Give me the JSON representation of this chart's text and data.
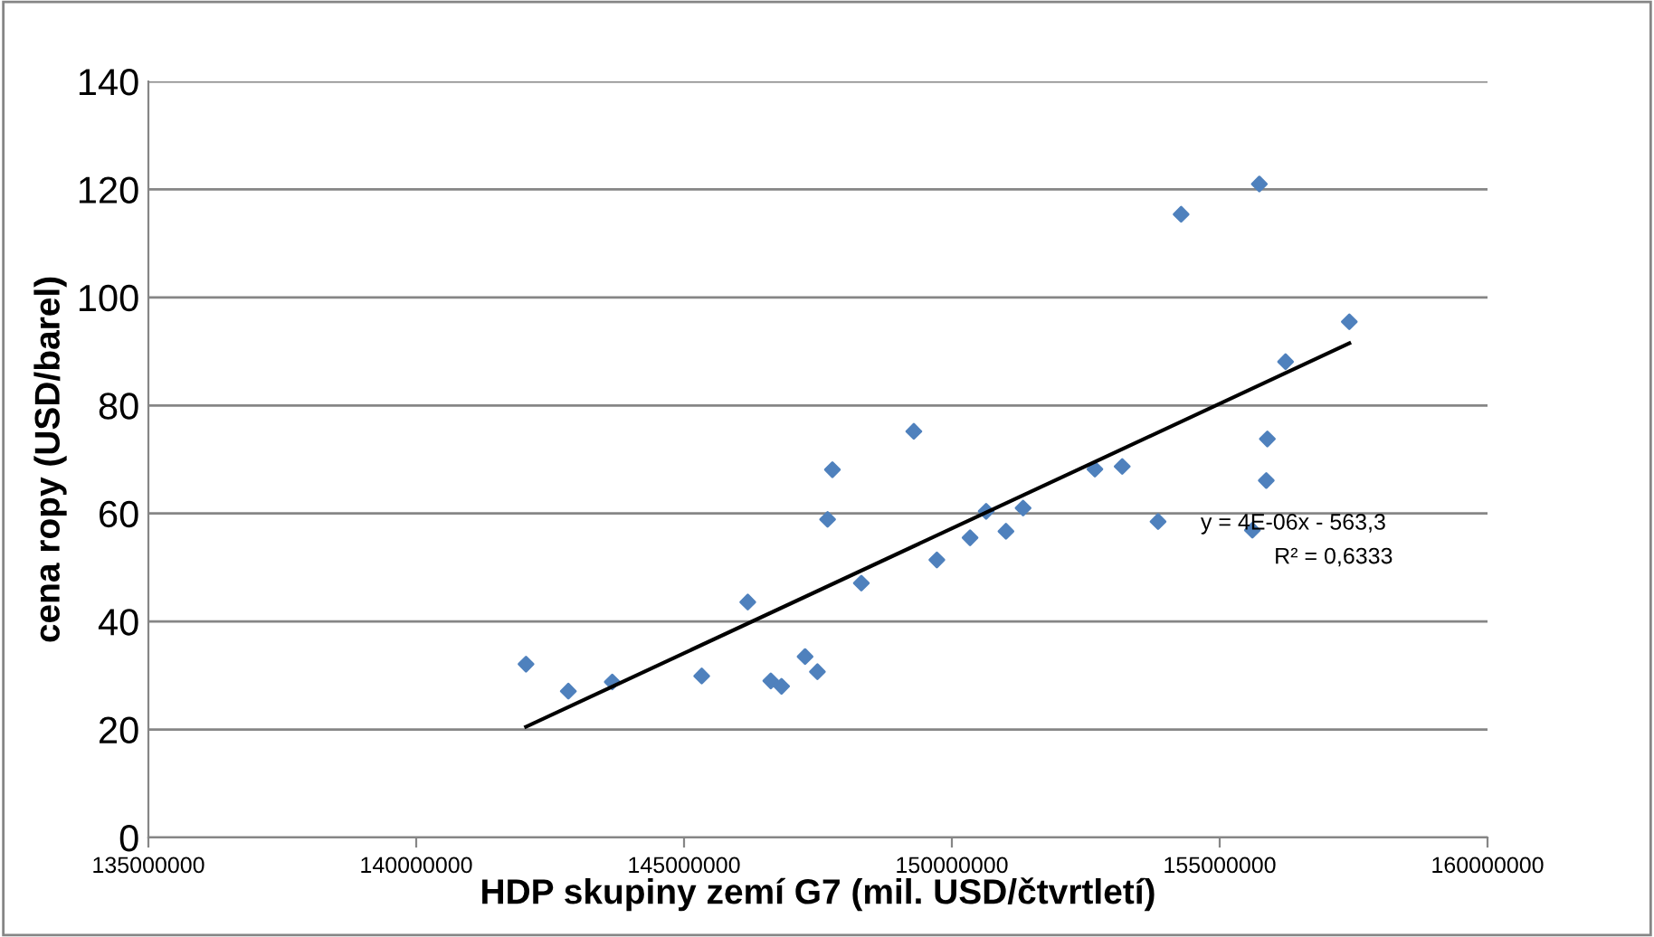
{
  "chart_data": {
    "type": "scatter",
    "xlabel": "HDP skupiny zemí G7 (mil. USD/čtvrtletí)",
    "ylabel": "cena ropy (USD/barel)",
    "series": [
      {
        "color": "#4f81bd",
        "marker": "diamond",
        "x": [
          142050000,
          142840000,
          143660000,
          145330000,
          146190000,
          146620000,
          146820000,
          147260000,
          147490000,
          147680000,
          147770000,
          148310000,
          149290000,
          149720000,
          150340000,
          150640000,
          151010000,
          151330000,
          152670000,
          153180000,
          153850000,
          154280000,
          155610000,
          155740000,
          155870000,
          155890000,
          156230000,
          157420000
        ],
        "values": [
          32.1,
          27.1,
          28.8,
          29.9,
          43.6,
          29.0,
          28.0,
          33.5,
          30.7,
          58.9,
          68.1,
          47.1,
          75.2,
          51.4,
          55.5,
          60.4,
          56.7,
          61.0,
          68.2,
          68.7,
          58.5,
          115.4,
          56.9,
          121.0,
          66.1,
          73.8,
          88.1,
          95.5
        ]
      },
      {
        "type": "line",
        "color": "#000000",
        "marker": "none",
        "line_style": "solid",
        "x": [
          142050000,
          157420000
        ],
        "values": [
          20.5,
          91.5
        ]
      }
    ],
    "annotations": [
      "y = 4E-06x - 563,3",
      "R² = 0,6333"
    ],
    "xlim": [
      135000000,
      160000000
    ],
    "xticks": [
      135000000,
      140000000,
      145000000,
      150000000,
      155000000,
      160000000
    ],
    "ylim": [
      0,
      140
    ],
    "yticks": [
      0,
      20,
      40,
      60,
      80,
      100,
      120,
      140
    ],
    "grid": "y",
    "legend": false
  }
}
